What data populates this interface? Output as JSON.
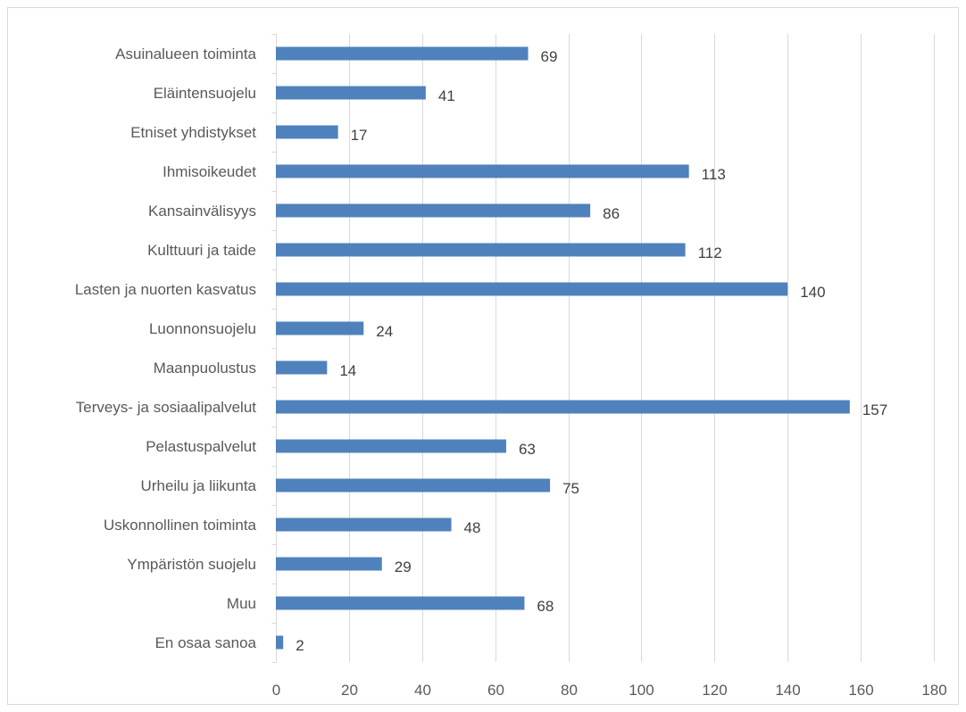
{
  "chart_data": {
    "type": "bar",
    "orientation": "horizontal",
    "categories": [
      "Asuinalueen toiminta",
      "Eläintensuojelu",
      "Etniset yhdistykset",
      "Ihmisoikeudet",
      "Kansainvälisyys",
      "Kulttuuri ja taide",
      "Lasten ja nuorten kasvatus",
      "Luonnonsuojelu",
      "Maanpuolustus",
      "Terveys- ja sosiaalipalvelut",
      "Pelastuspalvelut",
      "Urheilu ja liikunta",
      "Uskonnollinen toiminta",
      "Ympäristön suojelu",
      "Muu",
      "En osaa sanoa"
    ],
    "values": [
      69,
      41,
      17,
      113,
      86,
      112,
      140,
      24,
      14,
      157,
      63,
      75,
      48,
      29,
      68,
      2
    ],
    "xlim": [
      0,
      180
    ],
    "xticks": [
      0,
      20,
      40,
      60,
      80,
      100,
      120,
      140,
      160,
      180
    ],
    "title": "",
    "xlabel": "",
    "ylabel": "",
    "grid": "vertical",
    "data_labels": true,
    "legend": "none",
    "colors": {
      "bar": "#4f81bd",
      "grid": "#d9d9d9",
      "text": "#595959",
      "data_label": "#404040"
    }
  }
}
